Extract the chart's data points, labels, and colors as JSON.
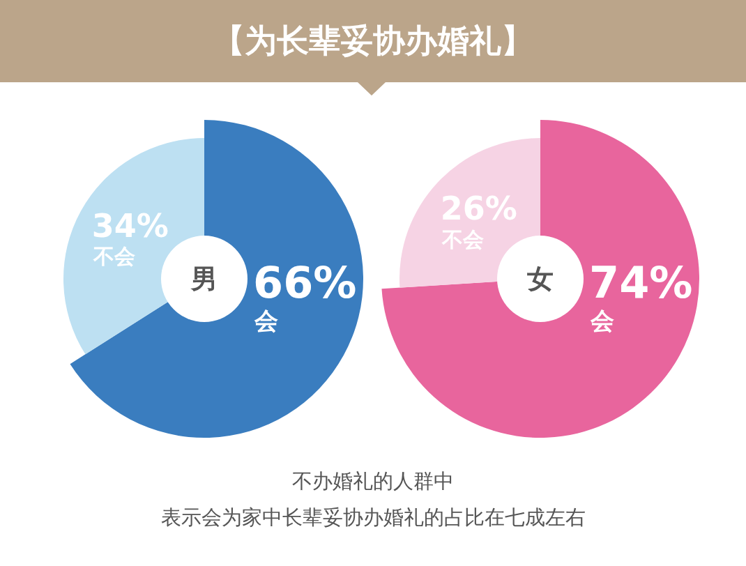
{
  "chart_data": [
    {
      "type": "donut",
      "title": "【为长辈妥协办婚礼】",
      "subtitle": "男",
      "categories": [
        "不会",
        "会"
      ],
      "values": [
        34,
        66
      ],
      "value_labels": [
        "34%",
        "66%"
      ],
      "colors": [
        "#bde0f2",
        "#3a7dbf"
      ],
      "annotations": [
        "不办婚礼的人群中",
        "表示会为家中长辈妥协办婚礼的占比在七成左右"
      ]
    },
    {
      "type": "donut",
      "subtitle": "女",
      "categories": [
        "不会",
        "会"
      ],
      "values": [
        26,
        74
      ],
      "value_labels": [
        "26%",
        "74%"
      ],
      "colors": [
        "#f6d3e4",
        "#e8659d"
      ]
    }
  ]
}
